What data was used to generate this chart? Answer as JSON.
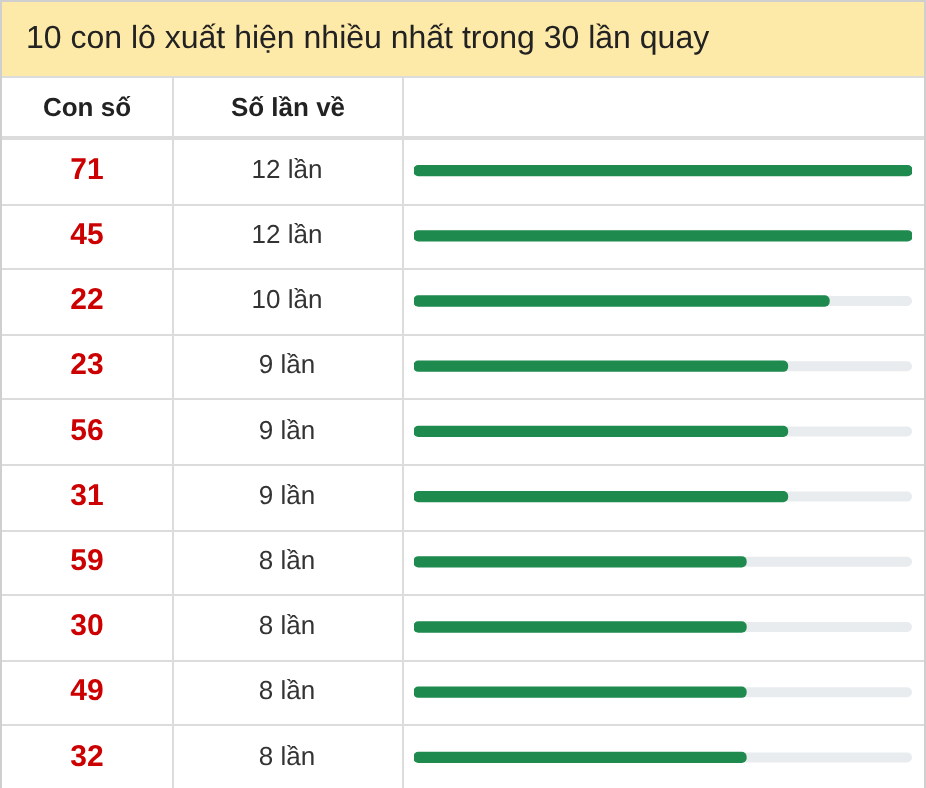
{
  "chart_data": {
    "type": "bar",
    "orientation": "horizontal",
    "title": "10 con lô xuất hiện nhiều nhất trong 30 lần quay",
    "ylabel": "Con số",
    "xlabel": "Số lần về",
    "categories": [
      "71",
      "45",
      "22",
      "23",
      "56",
      "31",
      "59",
      "30",
      "49",
      "32"
    ],
    "values": [
      12,
      12,
      10,
      9,
      9,
      9,
      8,
      8,
      8,
      8
    ],
    "value_labels": [
      "12 lần",
      "12 lần",
      "10 lần",
      "9 lần",
      "9 lần",
      "9 lần",
      "8 lần",
      "8 lần",
      "8 lần",
      "8 lần"
    ],
    "color": "#1e8a4e",
    "xlim": [
      0,
      12
    ],
    "tick_labels": false,
    "grid": false,
    "legend": false
  }
}
